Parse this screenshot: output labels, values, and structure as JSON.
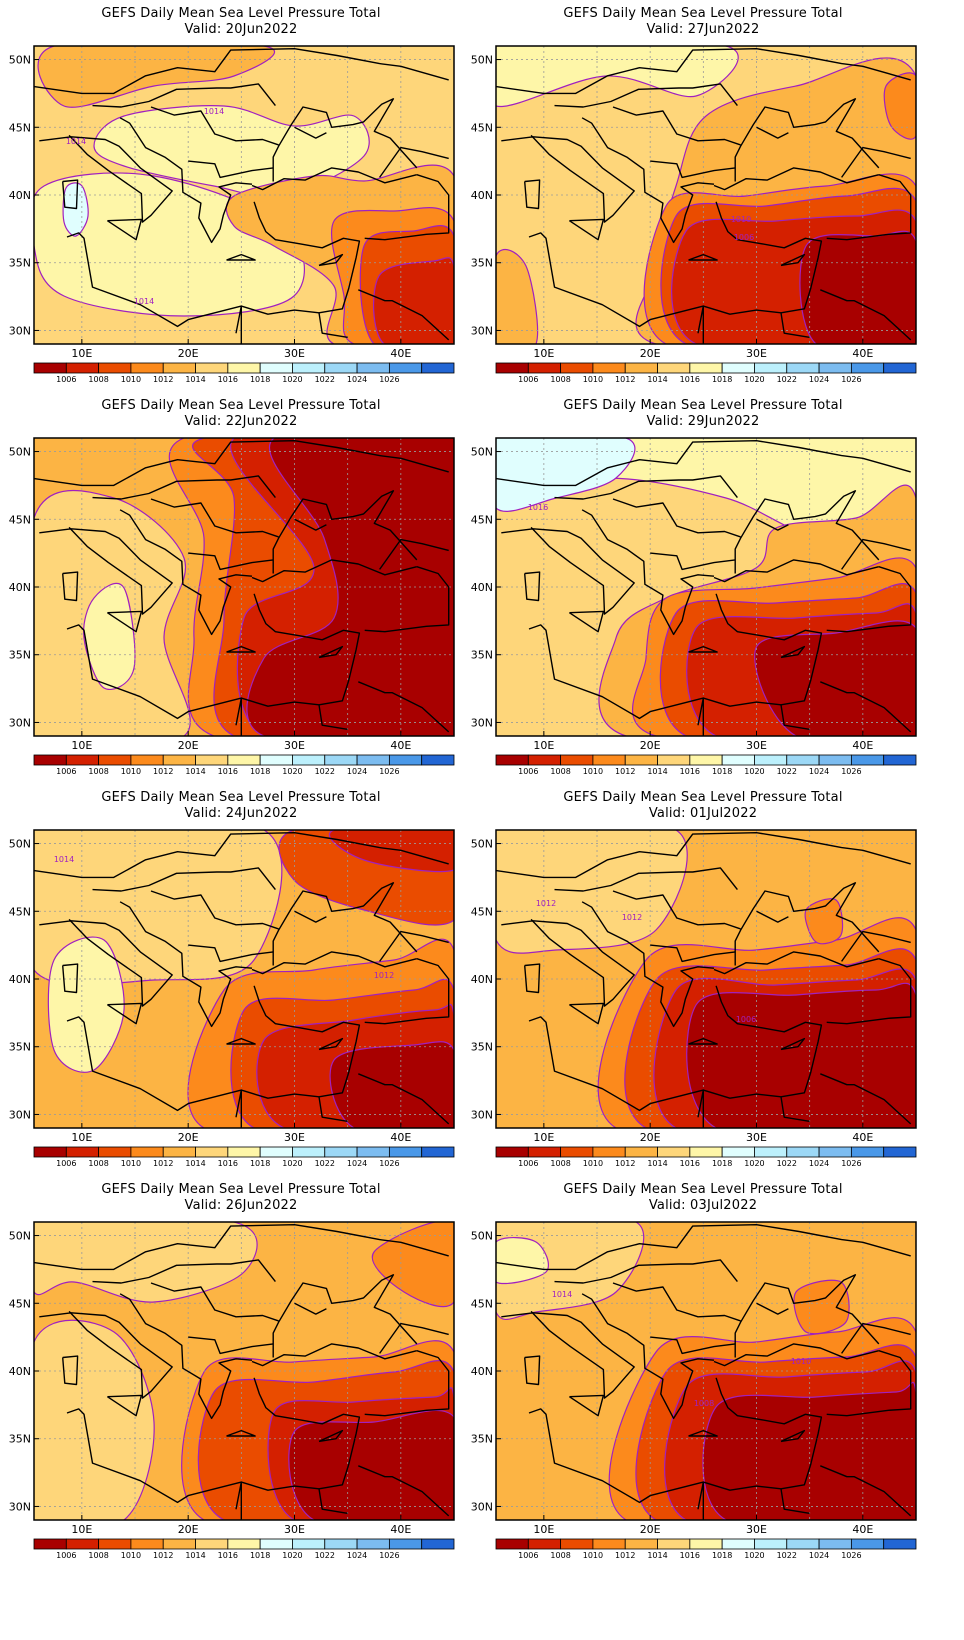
{
  "panels": [
    {
      "title": "GEFS Daily Mean Sea Level Pressure Total",
      "valid": "Valid: 20Jun2022",
      "variant": "a",
      "contour_labels": [
        "1014",
        "1014",
        "1014"
      ]
    },
    {
      "title": "GEFS Daily Mean Sea Level Pressure Total",
      "valid": "Valid: 27Jun2022",
      "variant": "b",
      "contour_labels": [
        "1010",
        "1006"
      ]
    },
    {
      "title": "GEFS Daily Mean Sea Level Pressure Total",
      "valid": "Valid: 22Jun2022",
      "variant": "c",
      "contour_labels": []
    },
    {
      "title": "GEFS Daily Mean Sea Level Pressure Total",
      "valid": "Valid: 29Jun2022",
      "variant": "d",
      "contour_labels": [
        "1016"
      ]
    },
    {
      "title": "GEFS Daily Mean Sea Level Pressure Total",
      "valid": "Valid: 24Jun2022",
      "variant": "e",
      "contour_labels": [
        "1014",
        "1012"
      ]
    },
    {
      "title": "GEFS Daily Mean Sea Level Pressure Total",
      "valid": "Valid: 01Jul2022",
      "variant": "f",
      "contour_labels": [
        "1012",
        "1012",
        "1006"
      ]
    },
    {
      "title": "GEFS Daily Mean Sea Level Pressure Total",
      "valid": "Valid: 26Jun2022",
      "variant": "g",
      "contour_labels": []
    },
    {
      "title": "GEFS Daily Mean Sea Level Pressure Total",
      "valid": "Valid: 03Jul2022",
      "variant": "h",
      "contour_labels": [
        "1014",
        "1010",
        "1008"
      ]
    }
  ],
  "axes": {
    "x_ticks": [
      "10E",
      "20E",
      "30E",
      "40E"
    ],
    "y_ticks": [
      "50N",
      "45N",
      "40N",
      "35N",
      "30N"
    ]
  },
  "colorbar": {
    "labels": [
      "1006",
      "1008",
      "1010",
      "1012",
      "1014",
      "1016",
      "1018",
      "1020",
      "1022",
      "1024",
      "1026"
    ],
    "colors": [
      "#a80000",
      "#d42000",
      "#ea4c00",
      "#fc8a1c",
      "#fcb444",
      "#fed67a",
      "#fef6a8",
      "#e0fefe",
      "#bcf0fc",
      "#9cd8f6",
      "#7cbcf0",
      "#4a98e8",
      "#2266d4"
    ]
  },
  "palette": {
    "c1006": "#a80000",
    "c1008": "#d42000",
    "c1010": "#ea4c00",
    "c1012": "#fc8a1c",
    "c1014": "#fcb444",
    "c1016": "#fed67a",
    "c1018": "#fef6a8",
    "c1020": "#e0fefe",
    "contour": "#a020c0",
    "coast": "#000000",
    "grid": "#9a9a9a"
  }
}
